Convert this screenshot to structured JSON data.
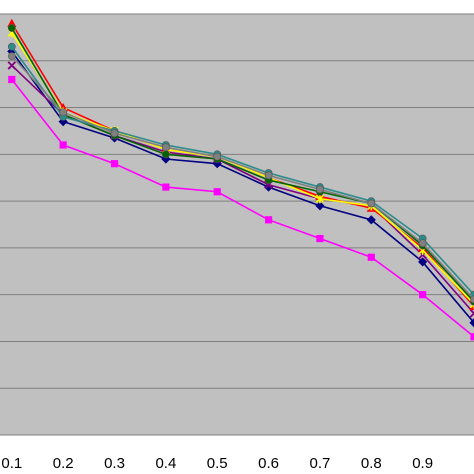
{
  "chart_data": {
    "type": "line",
    "x": [
      0.1,
      0.2,
      0.3,
      0.4,
      0.5,
      0.6,
      0.7,
      0.8,
      0.9,
      1.0
    ],
    "xticks": [
      "0.1",
      "0.2",
      "0.3",
      "0.4",
      "0.5",
      "0.6",
      "0.7",
      "0.8",
      "0.9"
    ],
    "xlim": [
      0.077,
      1.0
    ],
    "ylim": [
      0,
      9
    ],
    "grid": true,
    "plot_background": "#c0c0c0",
    "gridline_color": "#808080",
    "series": [
      {
        "color": "#ff00ff",
        "marker": "square",
        "values": [
          7.6,
          6.2,
          5.8,
          5.3,
          5.2,
          4.6,
          4.2,
          3.8,
          3.0,
          2.1
        ]
      },
      {
        "color": "#000080",
        "marker": "diamond",
        "values": [
          8.2,
          6.7,
          6.35,
          5.9,
          5.8,
          5.3,
          4.9,
          4.6,
          3.7,
          2.4
        ]
      },
      {
        "color": "#800080",
        "marker": "x",
        "values": [
          7.9,
          6.85,
          6.4,
          6.05,
          5.9,
          5.35,
          5.05,
          4.9,
          3.85,
          2.6
        ]
      },
      {
        "color": "#ff0000",
        "marker": "triangle",
        "values": [
          8.8,
          7.0,
          6.5,
          6.1,
          5.95,
          5.5,
          5.1,
          4.85,
          4.0,
          2.75
        ]
      },
      {
        "color": "#ffff00",
        "marker": "star",
        "values": [
          8.6,
          6.9,
          6.5,
          6.1,
          5.95,
          5.5,
          5.05,
          4.9,
          3.95,
          2.8
        ]
      },
      {
        "color": "#006400",
        "marker": "circle",
        "values": [
          8.7,
          6.85,
          6.4,
          6.0,
          5.9,
          5.45,
          5.2,
          4.95,
          4.05,
          2.85
        ]
      },
      {
        "color": "#2e8b8b",
        "marker": "circle",
        "values": [
          8.3,
          6.8,
          6.5,
          6.2,
          6.0,
          5.6,
          5.3,
          5.0,
          4.2,
          3.0
        ]
      },
      {
        "color": "#808080",
        "marker": "circle",
        "values": [
          8.1,
          6.9,
          6.45,
          6.15,
          5.95,
          5.55,
          5.25,
          4.95,
          4.1,
          2.9
        ]
      }
    ]
  }
}
